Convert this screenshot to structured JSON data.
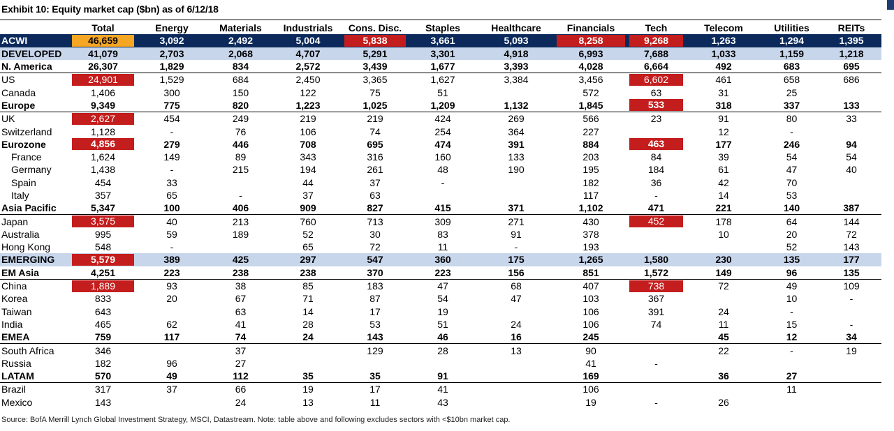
{
  "title": "Exhibit 10: Equity market cap ($bn) as of 6/12/18",
  "headers": [
    "",
    "Total",
    "Energy",
    "Materials",
    "Industrials",
    "Cons. Disc.",
    "Staples",
    "Healthcare",
    "Financials",
    "Tech",
    "Telecom",
    "Utilities",
    "REITs"
  ],
  "rows": [
    {
      "name": "ACWI",
      "values": [
        "46,659",
        "3,092",
        "2,492",
        "5,004",
        "5,838",
        "3,661",
        "5,093",
        "8,258",
        "9,268",
        "1,263",
        "1,294",
        "1,395"
      ],
      "style": "acwi",
      "hl": {
        "0": "orange",
        "4": "red",
        "7": "red",
        "8": "red"
      }
    },
    {
      "name": "DEVELOPED",
      "values": [
        "41,079",
        "2,703",
        "2,068",
        "4,707",
        "5,291",
        "3,301",
        "4,918",
        "6,993",
        "7,688",
        "1,033",
        "1,159",
        "1,218"
      ],
      "style": "dev"
    },
    {
      "name": "N. America",
      "values": [
        "26,307",
        "1,829",
        "834",
        "2,572",
        "3,439",
        "1,677",
        "3,393",
        "4,028",
        "6,664",
        "492",
        "683",
        "695"
      ],
      "style": "bold"
    },
    {
      "name": "US",
      "values": [
        "24,901",
        "1,529",
        "684",
        "2,450",
        "3,365",
        "1,627",
        "3,384",
        "3,456",
        "6,602",
        "461",
        "658",
        "686"
      ],
      "style": "topline",
      "hl": {
        "0": "red",
        "8": "red"
      }
    },
    {
      "name": "Canada",
      "values": [
        "1,406",
        "300",
        "150",
        "122",
        "75",
        "51",
        "",
        "572",
        "63",
        "31",
        "25",
        ""
      ],
      "style": ""
    },
    {
      "name": "Europe",
      "values": [
        "9,349",
        "775",
        "820",
        "1,223",
        "1,025",
        "1,209",
        "1,132",
        "1,845",
        "533",
        "318",
        "337",
        "133"
      ],
      "style": "bold",
      "hl": {
        "8": "red"
      }
    },
    {
      "name": "UK",
      "values": [
        "2,627",
        "454",
        "249",
        "219",
        "219",
        "424",
        "269",
        "566",
        "23",
        "91",
        "80",
        "33"
      ],
      "style": "topline",
      "hl": {
        "0": "red"
      }
    },
    {
      "name": "Switzerland",
      "values": [
        "1,128",
        "-",
        "76",
        "106",
        "74",
        "254",
        "364",
        "227",
        "",
        "12",
        "-",
        ""
      ],
      "style": ""
    },
    {
      "name": "Eurozone",
      "values": [
        "4,856",
        "279",
        "446",
        "708",
        "695",
        "474",
        "391",
        "884",
        "463",
        "177",
        "246",
        "94"
      ],
      "style": "bold",
      "hl": {
        "0": "red",
        "8": "red"
      }
    },
    {
      "name": "France",
      "values": [
        "1,624",
        "149",
        "89",
        "343",
        "316",
        "160",
        "133",
        "203",
        "84",
        "39",
        "54",
        "54"
      ],
      "style": "indent"
    },
    {
      "name": "Germany",
      "values": [
        "1,438",
        "-",
        "215",
        "194",
        "261",
        "48",
        "190",
        "195",
        "184",
        "61",
        "47",
        "40"
      ],
      "style": "indent"
    },
    {
      "name": "Spain",
      "values": [
        "454",
        "33",
        "",
        "44",
        "37",
        "-",
        "",
        "182",
        "36",
        "42",
        "70",
        ""
      ],
      "style": "indent"
    },
    {
      "name": "Italy",
      "values": [
        "357",
        "65",
        "-",
        "37",
        "63",
        "",
        "",
        "117",
        "-",
        "14",
        "53",
        ""
      ],
      "style": "indent"
    },
    {
      "name": "Asia Pacific",
      "values": [
        "5,347",
        "100",
        "406",
        "909",
        "827",
        "415",
        "371",
        "1,102",
        "471",
        "221",
        "140",
        "387"
      ],
      "style": "bold"
    },
    {
      "name": "Japan",
      "values": [
        "3,575",
        "40",
        "213",
        "760",
        "713",
        "309",
        "271",
        "430",
        "452",
        "178",
        "64",
        "144"
      ],
      "style": "topline",
      "hl": {
        "0": "red",
        "8": "red"
      }
    },
    {
      "name": "Australia",
      "values": [
        "995",
        "59",
        "189",
        "52",
        "30",
        "83",
        "91",
        "378",
        "",
        "10",
        "20",
        "72"
      ],
      "style": ""
    },
    {
      "name": "Hong Kong",
      "values": [
        "548",
        "-",
        "",
        "65",
        "72",
        "11",
        "-",
        "193",
        "",
        "",
        "52",
        "143"
      ],
      "style": ""
    },
    {
      "name": "EMERGING",
      "values": [
        "5,579",
        "389",
        "425",
        "297",
        "547",
        "360",
        "175",
        "1,265",
        "1,580",
        "230",
        "135",
        "177"
      ],
      "style": "emg",
      "hl": {
        "0": "red"
      }
    },
    {
      "name": "EM Asia",
      "values": [
        "4,251",
        "223",
        "238",
        "238",
        "370",
        "223",
        "156",
        "851",
        "1,572",
        "149",
        "96",
        "135"
      ],
      "style": "bold"
    },
    {
      "name": "China",
      "values": [
        "1,889",
        "93",
        "38",
        "85",
        "183",
        "47",
        "68",
        "407",
        "738",
        "72",
        "49",
        "109"
      ],
      "style": "topline",
      "hl": {
        "0": "red",
        "8": "red"
      }
    },
    {
      "name": "Korea",
      "values": [
        "833",
        "20",
        "67",
        "71",
        "87",
        "54",
        "47",
        "103",
        "367",
        "",
        "10",
        "-"
      ],
      "style": ""
    },
    {
      "name": "Taiwan",
      "values": [
        "643",
        "",
        "63",
        "14",
        "17",
        "19",
        "",
        "106",
        "391",
        "24",
        "-",
        ""
      ],
      "style": ""
    },
    {
      "name": "India",
      "values": [
        "465",
        "62",
        "41",
        "28",
        "53",
        "51",
        "24",
        "106",
        "74",
        "11",
        "15",
        "-"
      ],
      "style": ""
    },
    {
      "name": "EMEA",
      "values": [
        "759",
        "117",
        "74",
        "24",
        "143",
        "46",
        "16",
        "245",
        "",
        "45",
        "12",
        "34"
      ],
      "style": "bold"
    },
    {
      "name": "South Africa",
      "values": [
        "346",
        "",
        "37",
        "",
        "129",
        "28",
        "13",
        "90",
        "",
        "22",
        "-",
        "19"
      ],
      "style": "topline"
    },
    {
      "name": "Russia",
      "values": [
        "182",
        "96",
        "27",
        "",
        "",
        "",
        "",
        "41",
        "-",
        "",
        "",
        ""
      ],
      "style": ""
    },
    {
      "name": "LATAM",
      "values": [
        "570",
        "49",
        "112",
        "35",
        "35",
        "91",
        "",
        "169",
        "",
        "36",
        "27",
        ""
      ],
      "style": "bold"
    },
    {
      "name": "Brazil",
      "values": [
        "317",
        "37",
        "66",
        "19",
        "17",
        "41",
        "",
        "106",
        "",
        "",
        "11",
        ""
      ],
      "style": "topline"
    },
    {
      "name": "Mexico",
      "values": [
        "143",
        "",
        "24",
        "13",
        "11",
        "43",
        "",
        "19",
        "-",
        "26",
        "",
        ""
      ],
      "style": ""
    }
  ],
  "source": "Source: BofA Merrill Lynch Global Investment Strategy, MSCI, Datastream. Note: table above and following excludes sectors with <$10bn market cap.",
  "colors": {
    "acwi_bg": "#0b2a5b",
    "band_bg": "#c8d6ec",
    "highlight_red": "#c41d1d",
    "highlight_orange": "#f5a623"
  }
}
